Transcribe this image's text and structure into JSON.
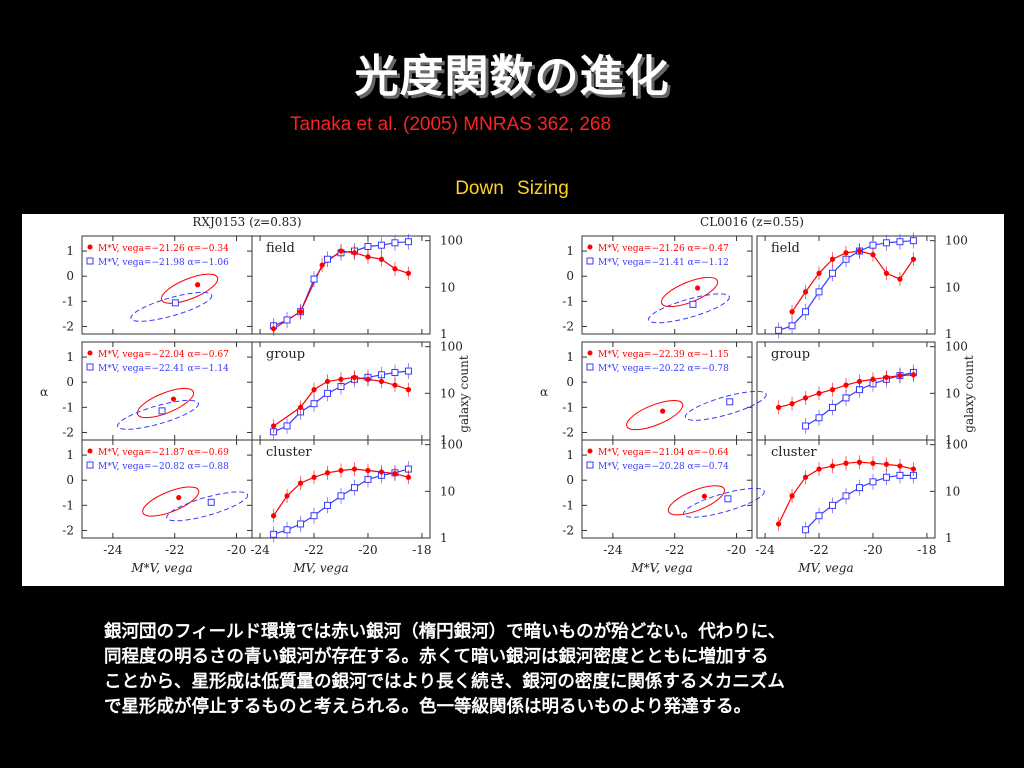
{
  "slide": {
    "title": "光度関数の進化",
    "citation": "Tanaka et al. (2005) MNRAS 362, 268",
    "subtitle": "Down Sizing",
    "body_lines": [
      "銀河団のフィールド環境では赤い銀河（楕円銀河）で暗いものが殆どない。代わりに、",
      "同程度の明るさの青い銀河が存在する。赤くて暗い銀河は銀河密度とともに増加する",
      "ことから、星形成は低質量の銀河ではより長く続き、銀河の密度に関係するメカニズム",
      "で星形成が停止するものと考えられる。色一等級関係は明るいものより発達する。"
    ]
  },
  "colors": {
    "red": "#ff0000",
    "blue": "#3a3aff",
    "cite": "#ff2020",
    "subtitle": "#ffd21f"
  },
  "chart_data": [
    {
      "type": "scatter",
      "title": "RXJ0153 (z=0.83)",
      "ylabel": "α",
      "panel_type": "parameter-contours",
      "xlabel": "M*V, vega",
      "xlim": [
        -25,
        -19.5
      ],
      "ylim": [
        -2.3,
        1.6
      ],
      "xticks": [
        "-24",
        "-22",
        "-20"
      ],
      "yticks": [
        "1",
        "0",
        "-1",
        "-2"
      ],
      "environments": [
        {
          "name": "field",
          "red": {
            "mstar": -21.26,
            "alpha": -0.34
          },
          "blue": {
            "mstar": -21.98,
            "alpha": -1.06
          }
        },
        {
          "name": "group",
          "red": {
            "mstar": -22.04,
            "alpha": -0.67
          },
          "blue": {
            "mstar": -22.41,
            "alpha": -1.14
          }
        },
        {
          "name": "cluster",
          "red": {
            "mstar": -21.87,
            "alpha": -0.69
          },
          "blue": {
            "mstar": -20.82,
            "alpha": -0.88
          }
        }
      ],
      "legend_labels": {
        "field": [
          "M*V, vega=−21.26   α=−0.34",
          "M*V, vega=−21.98   α=−1.06"
        ],
        "group": [
          "M*V, vega=−22.04   α=−0.67",
          "M*V, vega=−22.41   α=−1.14"
        ],
        "cluster": [
          "M*V, vega=−21.87   α=−0.69",
          "M*V, vega=−20.82   α=−0.88"
        ]
      }
    },
    {
      "type": "scatter",
      "title": "RXJ0153 (z=0.83)",
      "panel_type": "luminosity-function",
      "xlabel": "MV, vega",
      "ylabel": "galaxy count",
      "xlim": [
        -24.3,
        -17.7
      ],
      "ylim_log10": [
        0,
        2.1
      ],
      "xticks": [
        "-24",
        "-22",
        "-20",
        "-18"
      ],
      "yticks": [
        "1",
        "10",
        "100"
      ],
      "series": [
        {
          "name": "field",
          "red_x": [
            -23.5,
            -22.5,
            -21.7,
            -21.0,
            -20.5,
            -20.0,
            -19.5,
            -19.0,
            -18.5
          ],
          "red_y": [
            1.3,
            3,
            30,
            60,
            55,
            45,
            40,
            25,
            20
          ],
          "blue_x": [
            -23.5,
            -23.0,
            -22.5,
            -22.0,
            -21.5,
            -21.0,
            -20.5,
            -20.0,
            -19.5,
            -19.0,
            -18.5
          ],
          "blue_y": [
            1.5,
            2,
            3,
            15,
            40,
            55,
            60,
            75,
            80,
            90,
            95
          ]
        },
        {
          "name": "group",
          "red_x": [
            -23.5,
            -22.5,
            -22.0,
            -21.5,
            -21.0,
            -20.5,
            -20.0,
            -19.5,
            -19.0,
            -18.5
          ],
          "red_y": [
            2,
            5,
            12,
            18,
            20,
            22,
            20,
            18,
            15,
            12
          ],
          "blue_x": [
            -23.5,
            -23.0,
            -22.5,
            -22.0,
            -21.5,
            -21.0,
            -20.5,
            -20.0,
            -19.5,
            -19.0,
            -18.5
          ],
          "blue_y": [
            1.5,
            2,
            4,
            6,
            10,
            14,
            20,
            22,
            25,
            28,
            30
          ]
        },
        {
          "name": "cluster",
          "red_x": [
            -23.5,
            -23.0,
            -22.5,
            -22.0,
            -21.5,
            -21.0,
            -20.5,
            -20.0,
            -19.5,
            -19.0,
            -18.5
          ],
          "red_y": [
            3,
            8,
            15,
            20,
            25,
            28,
            30,
            28,
            26,
            24,
            20
          ],
          "blue_x": [
            -23.5,
            -23.0,
            -22.5,
            -22.0,
            -21.5,
            -21.0,
            -20.5,
            -20.0,
            -19.5,
            -19.0,
            -18.5
          ],
          "blue_y": [
            1.2,
            1.5,
            2,
            3,
            5,
            8,
            12,
            18,
            22,
            25,
            30
          ]
        }
      ]
    },
    {
      "type": "scatter",
      "title": "CL0016 (z=0.55)",
      "ylabel": "α",
      "panel_type": "parameter-contours",
      "xlabel": "M*V, vega",
      "xlim": [
        -25,
        -19.5
      ],
      "ylim": [
        -2.3,
        1.6
      ],
      "xticks": [
        "-24",
        "-22",
        "-20"
      ],
      "yticks": [
        "1",
        "0",
        "-1",
        "-2"
      ],
      "environments": [
        {
          "name": "field",
          "red": {
            "mstar": -21.26,
            "alpha": -0.47
          },
          "blue": {
            "mstar": -21.41,
            "alpha": -1.12
          }
        },
        {
          "name": "group",
          "red": {
            "mstar": -22.39,
            "alpha": -1.15
          },
          "blue": {
            "mstar": -20.22,
            "alpha": -0.78
          }
        },
        {
          "name": "cluster",
          "red": {
            "mstar": -21.04,
            "alpha": -0.64
          },
          "blue": {
            "mstar": -20.28,
            "alpha": -0.74
          }
        }
      ],
      "legend_labels": {
        "field": [
          "M*V, vega=−21.26   α=−0.47",
          "M*V, vega=−21.41   α=−1.12"
        ],
        "group": [
          "M*V, vega=−22.39   α=−1.15",
          "M*V, vega=−20.22   α=−0.78"
        ],
        "cluster": [
          "M*V, vega=−21.04   α=−0.64",
          "M*V, vega=−20.28   α=−0.74"
        ]
      }
    },
    {
      "type": "scatter",
      "title": "CL0016 (z=0.55)",
      "panel_type": "luminosity-function",
      "xlabel": "MV, vega",
      "ylabel": "galaxy count",
      "xlim": [
        -24.3,
        -17.7
      ],
      "ylim_log10": [
        0,
        2.1
      ],
      "xticks": [
        "-24",
        "-22",
        "-20",
        "-18"
      ],
      "yticks": [
        "1",
        "10",
        "100"
      ],
      "series": [
        {
          "name": "field",
          "red_x": [
            -23.0,
            -22.5,
            -22.0,
            -21.5,
            -21.0,
            -20.5,
            -20.0,
            -19.5,
            -19.0,
            -18.5
          ],
          "red_y": [
            3,
            8,
            20,
            40,
            55,
            60,
            50,
            20,
            15,
            40
          ],
          "blue_x": [
            -23.5,
            -23.0,
            -22.5,
            -22.0,
            -21.5,
            -21.0,
            -20.5,
            -20.0,
            -19.5,
            -19.0,
            -18.5
          ],
          "blue_y": [
            1.2,
            1.5,
            3,
            8,
            20,
            40,
            60,
            80,
            90,
            95,
            100
          ]
        },
        {
          "name": "group",
          "red_x": [
            -23.5,
            -23.0,
            -22.5,
            -22.0,
            -21.5,
            -21.0,
            -20.5,
            -20.0,
            -19.5,
            -19.0,
            -18.5
          ],
          "red_y": [
            5,
            6,
            8,
            10,
            12,
            15,
            18,
            20,
            22,
            24,
            25
          ],
          "blue_x": [
            -22.5,
            -22.0,
            -21.5,
            -21.0,
            -20.5,
            -20.0,
            -19.5,
            -19.0,
            -18.5
          ],
          "blue_y": [
            2,
            3,
            5,
            8,
            12,
            16,
            20,
            24,
            28
          ]
        },
        {
          "name": "cluster",
          "red_x": [
            -23.5,
            -23.0,
            -22.5,
            -22.0,
            -21.5,
            -21.0,
            -20.5,
            -20.0,
            -19.5,
            -19.0,
            -18.5
          ],
          "red_y": [
            2,
            8,
            20,
            30,
            35,
            40,
            42,
            40,
            38,
            35,
            30
          ],
          "blue_x": [
            -22.5,
            -22.0,
            -21.5,
            -21.0,
            -20.5,
            -20.0,
            -19.5,
            -19.0,
            -18.5
          ],
          "blue_y": [
            1.5,
            3,
            5,
            8,
            12,
            16,
            20,
            22,
            22
          ]
        }
      ]
    }
  ]
}
